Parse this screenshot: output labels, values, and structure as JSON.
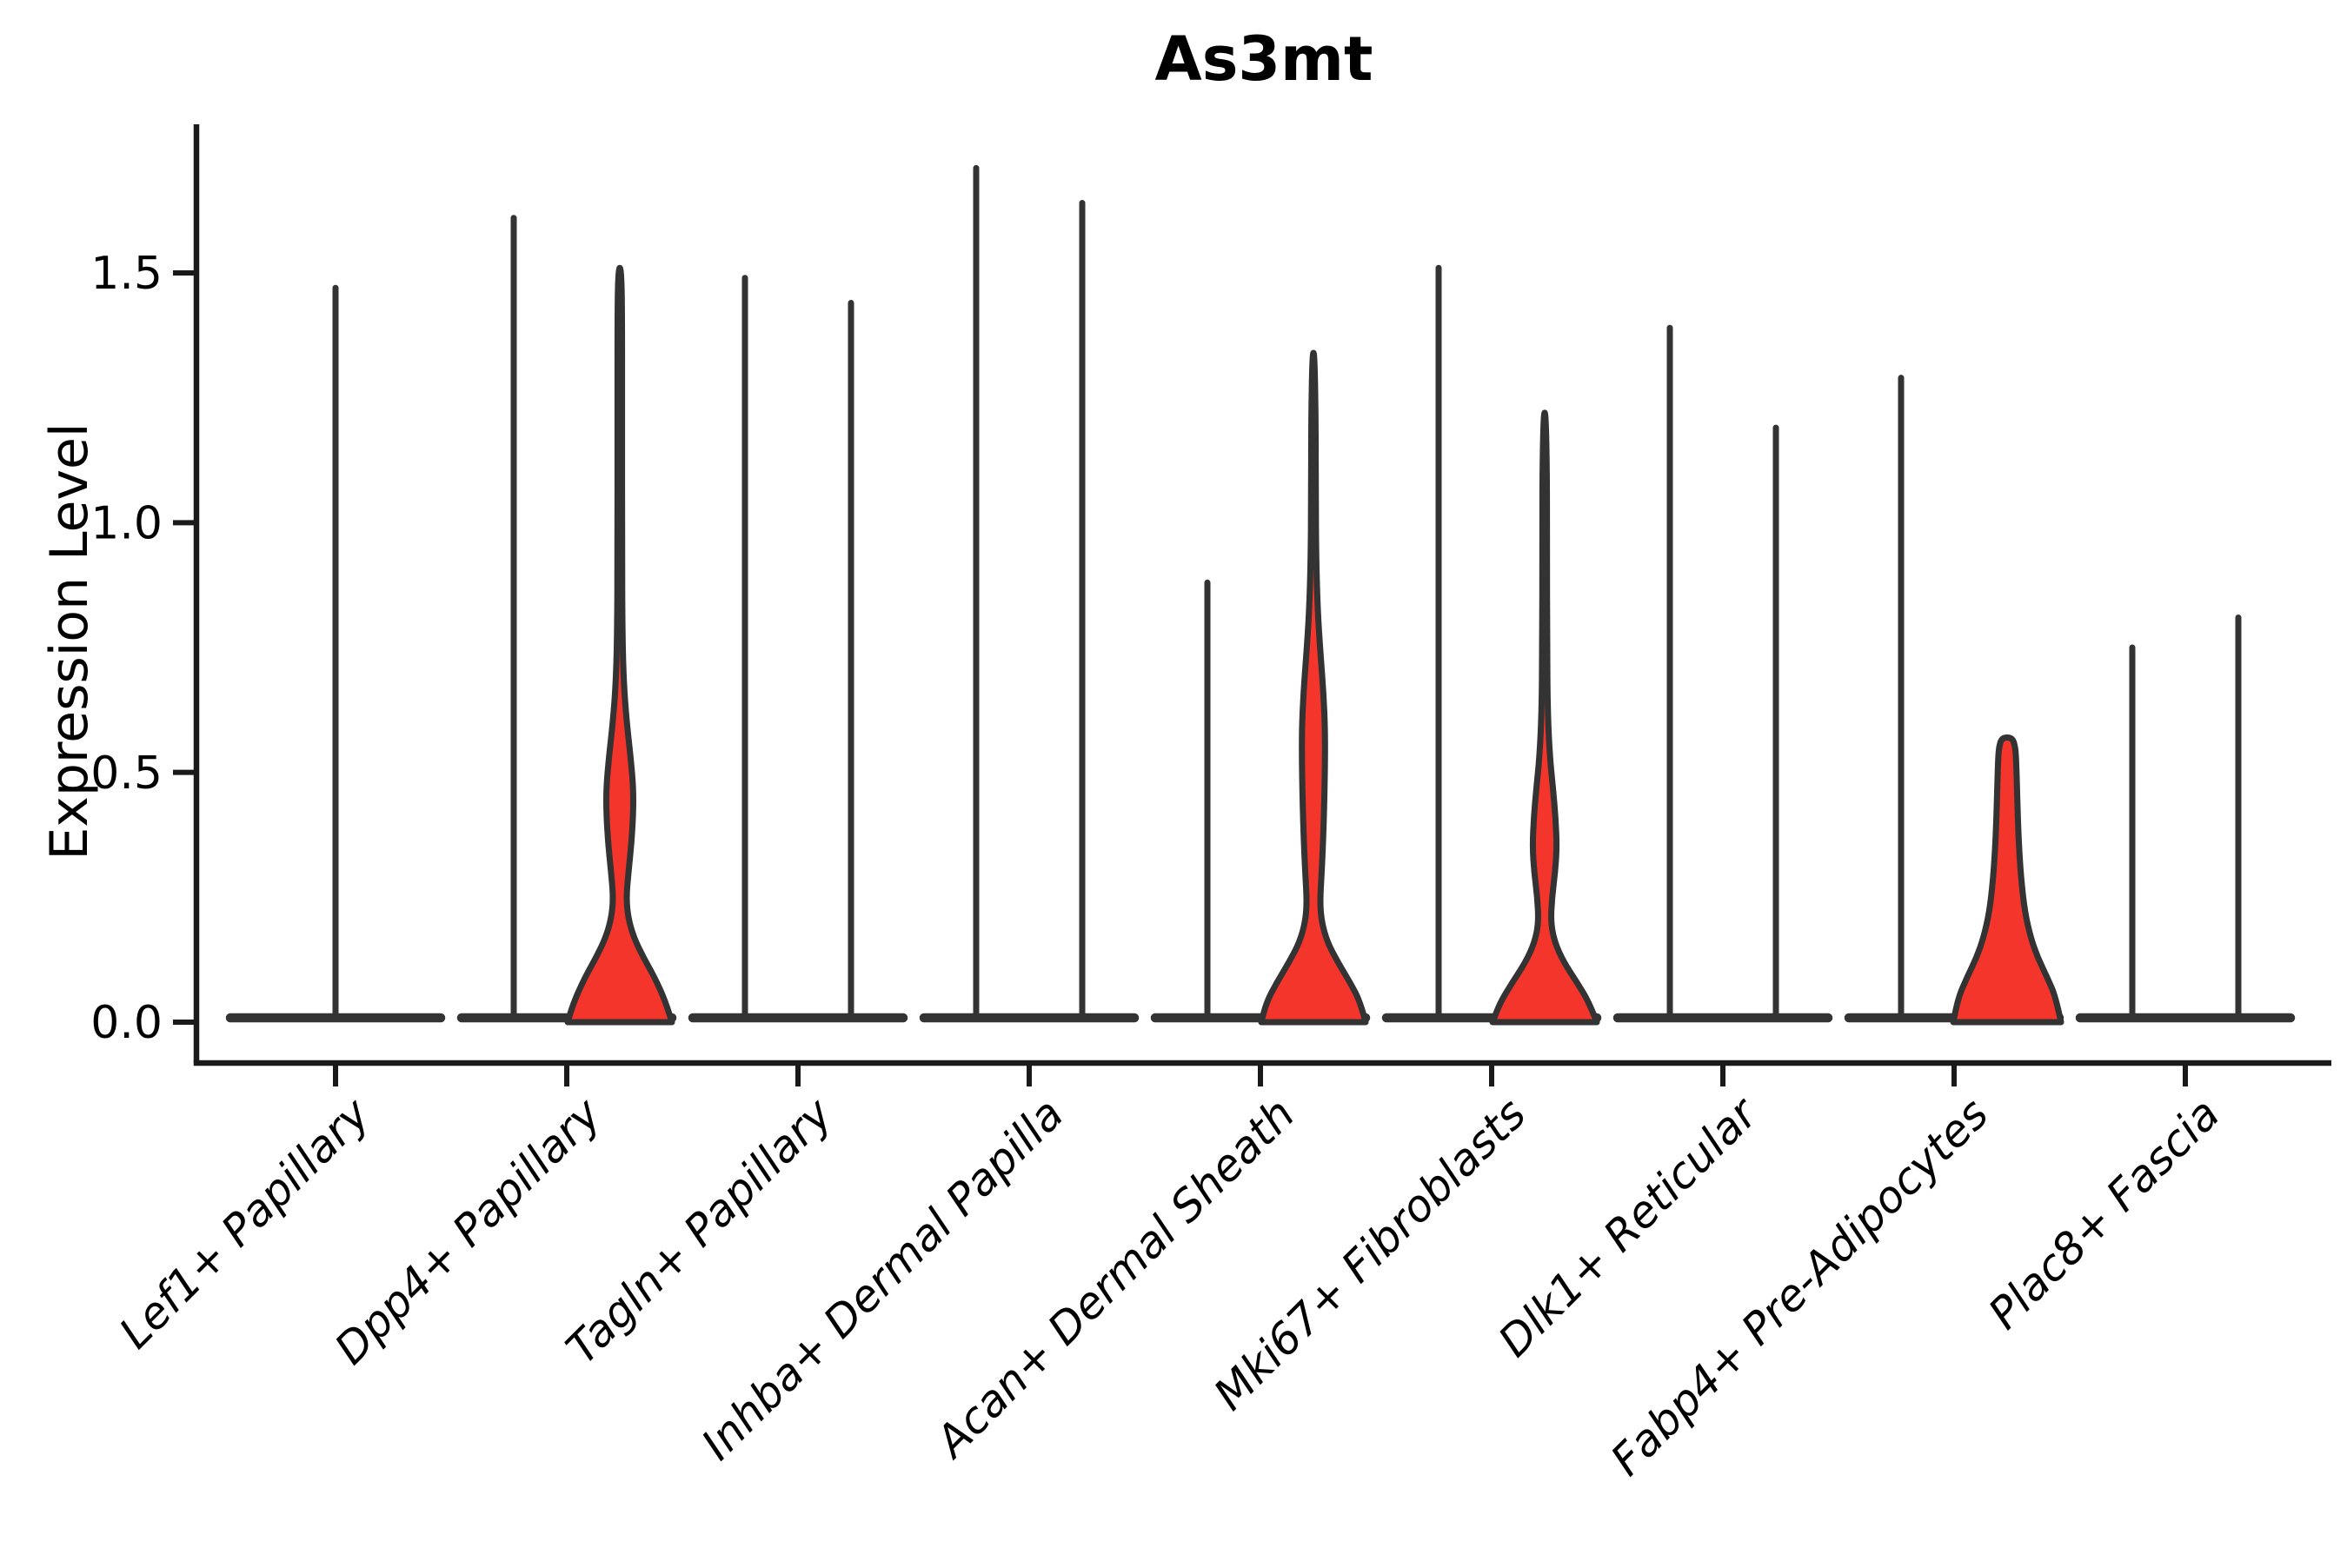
{
  "title": "As3mt",
  "axes": {
    "ylabel": "Expression Level",
    "ytick_labels": [
      "0.0",
      "0.5",
      "1.0",
      "1.5"
    ]
  },
  "chart_data": {
    "type": "violin",
    "title": "As3mt",
    "xlabel": "",
    "ylabel": "Expression Level",
    "ylim": [
      -0.09,
      1.8
    ],
    "yticks": [
      0.0,
      0.5,
      1.0,
      1.5
    ],
    "grid": false,
    "legend": null,
    "categories": [
      "Lef1+ Papillary",
      "Dpp4+ Papillary",
      "Tagln+ Papillary",
      "Inhba+ Dermal Papilla",
      "Acan+ Dermal Sheath",
      "Mki67+ Fibroblasts",
      "Dlk1+ Reticular",
      "Fabp4+ Pre-Adipocytes",
      "Plac8+ Fascia"
    ],
    "groups": [
      {
        "category": "Lef1+ Papillary",
        "violins": [
          {
            "position": "center",
            "style": "spike",
            "max": 1.47
          }
        ]
      },
      {
        "category": "Dpp4+ Papillary",
        "violins": [
          {
            "position": "left",
            "style": "spike",
            "max": 1.61
          },
          {
            "position": "right",
            "style": "filled",
            "max": 1.51,
            "profile": [
              [
                0,
                60
              ],
              [
                0.04,
                53
              ],
              [
                0.09,
                40
              ],
              [
                0.13,
                27
              ],
              [
                0.17,
                16
              ],
              [
                0.21,
                9.5
              ],
              [
                0.25,
                7.5
              ],
              [
                0.3,
                10
              ],
              [
                0.36,
                13.5
              ],
              [
                0.42,
                15.5
              ],
              [
                0.47,
                15.5
              ],
              [
                0.53,
                12.5
              ],
              [
                0.6,
                8
              ],
              [
                0.68,
                4.5
              ],
              [
                0.78,
                3
              ],
              [
                0.95,
                2.6
              ],
              [
                1.2,
                2.6
              ],
              [
                1.45,
                2.6
              ],
              [
                1.51,
                1.2
              ]
            ]
          }
        ]
      },
      {
        "category": "Tagln+ Papillary",
        "violins": [
          {
            "position": "left",
            "style": "spike",
            "max": 1.49
          },
          {
            "position": "right",
            "style": "spike",
            "max": 1.44
          }
        ]
      },
      {
        "category": "Inhba+ Dermal Papilla",
        "violins": [
          {
            "position": "left",
            "style": "spike",
            "max": 1.71
          },
          {
            "position": "right",
            "style": "spike",
            "max": 1.64
          }
        ]
      },
      {
        "category": "Acan+ Dermal Sheath",
        "violins": [
          {
            "position": "left",
            "style": "spike",
            "max": 0.88
          },
          {
            "position": "right",
            "style": "filled",
            "max": 1.34,
            "profile": [
              [
                0,
                60
              ],
              [
                0.04,
                54
              ],
              [
                0.08,
                42
              ],
              [
                0.12,
                28
              ],
              [
                0.16,
                16
              ],
              [
                0.2,
                9.5
              ],
              [
                0.24,
                7.5
              ],
              [
                0.3,
                9.5
              ],
              [
                0.38,
                11.5
              ],
              [
                0.48,
                13
              ],
              [
                0.58,
                13.5
              ],
              [
                0.66,
                11.5
              ],
              [
                0.74,
                8
              ],
              [
                0.82,
                5
              ],
              [
                0.92,
                3.2
              ],
              [
                1.05,
                2.6
              ],
              [
                1.2,
                2.6
              ],
              [
                1.34,
                1.2
              ]
            ]
          }
        ]
      },
      {
        "category": "Mki67+ Fibroblasts",
        "violins": [
          {
            "position": "left",
            "style": "spike",
            "max": 1.51
          },
          {
            "position": "right",
            "style": "filled",
            "max": 1.22,
            "profile": [
              [
                0,
                60
              ],
              [
                0.04,
                51
              ],
              [
                0.08,
                37
              ],
              [
                0.12,
                22
              ],
              [
                0.16,
                11.5
              ],
              [
                0.2,
                7
              ],
              [
                0.25,
                8.5
              ],
              [
                0.3,
                12
              ],
              [
                0.35,
                14
              ],
              [
                0.41,
                12.5
              ],
              [
                0.47,
                9.5
              ],
              [
                0.53,
                6
              ],
              [
                0.62,
                3.5
              ],
              [
                0.75,
                2.8
              ],
              [
                0.95,
                2.6
              ],
              [
                1.1,
                2.6
              ],
              [
                1.22,
                1.2
              ]
            ]
          }
        ]
      },
      {
        "category": "Dlk1+ Reticular",
        "violins": [
          {
            "position": "left",
            "style": "spike",
            "max": 1.39
          },
          {
            "position": "right",
            "style": "spike",
            "max": 1.19
          }
        ]
      },
      {
        "category": "Fabp4+ Pre-Adipocytes",
        "violins": [
          {
            "position": "left",
            "style": "spike",
            "max": 1.29
          },
          {
            "position": "right",
            "style": "filled",
            "max": 0.57,
            "profile": [
              [
                0,
                62
              ],
              [
                0.05,
                56
              ],
              [
                0.09,
                46
              ],
              [
                0.13,
                35
              ],
              [
                0.17,
                27
              ],
              [
                0.22,
                20.5
              ],
              [
                0.28,
                16.5
              ],
              [
                0.34,
                14
              ],
              [
                0.4,
                12.5
              ],
              [
                0.46,
                11.5
              ],
              [
                0.52,
                10.5
              ],
              [
                0.55,
                9.5
              ],
              [
                0.57,
                6
              ]
            ]
          }
        ]
      },
      {
        "category": "Plac8+ Fascia",
        "violins": [
          {
            "position": "left",
            "style": "spike",
            "max": 0.75
          },
          {
            "position": "right",
            "style": "spike",
            "max": 0.81
          }
        ]
      }
    ],
    "colors": {
      "violin_outline": "#333333",
      "violin_fill": "#f4352b",
      "axis": "#1a1a1a",
      "text": "#000000"
    }
  }
}
